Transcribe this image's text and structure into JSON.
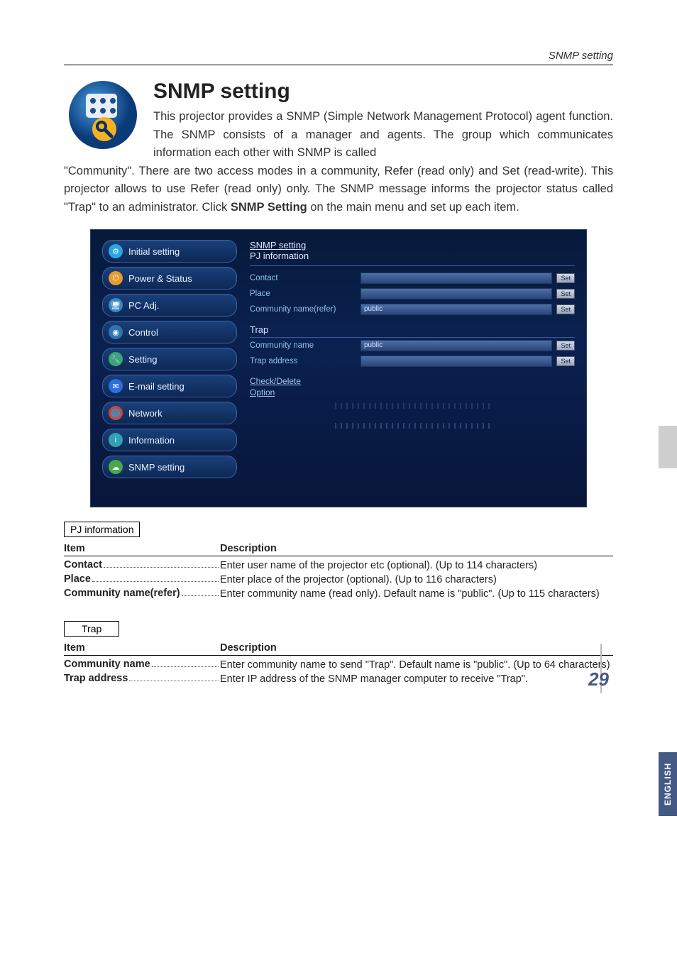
{
  "header": {
    "running_title": "SNMP setting"
  },
  "title": "SNMP setting",
  "intro_part1": "This projector provides a SNMP (Simple Network Management Protocol) agent function. The SNMP consists of a manager and agents. The group which communicates information each other with SNMP is called",
  "intro_part2a": "\"Community\". There are two access modes in a community, Refer (read only) and Set (read-write). This projector allows to use Refer (read only) only. The SNMP message informs the projector status called \"Trap\" to an administrator. Click ",
  "intro_bold": "SNMP Setting",
  "intro_part2b": " on the main menu and set up each item.",
  "screenshot": {
    "sidebar": [
      {
        "label": "Initial setting",
        "icon_bg": "#2aa7e0",
        "glyph": "⚙"
      },
      {
        "label": "Power & Status",
        "icon_bg": "#e59b2e",
        "glyph": "⏻"
      },
      {
        "label": "PC Adj.",
        "icon_bg": "#3a86c9",
        "glyph": "🖥"
      },
      {
        "label": "Control",
        "icon_bg": "#2e74b5",
        "glyph": "◉"
      },
      {
        "label": "Setting",
        "icon_bg": "#3aa673",
        "glyph": "🔧"
      },
      {
        "label": "E-mail setting",
        "icon_bg": "#2b6fe0",
        "glyph": "✉"
      },
      {
        "label": "Network",
        "icon_bg": "#c9483a",
        "glyph": "🌐"
      },
      {
        "label": "Information",
        "icon_bg": "#34a0b8",
        "glyph": "i"
      },
      {
        "label": "SNMP setting",
        "icon_bg": "#4aa84a",
        "glyph": "☁"
      }
    ],
    "section1_title_line1": "SNMP setting",
    "section1_title_line2": "PJ information",
    "section1_rows": [
      {
        "label": "Contact",
        "value": "",
        "btn": "Set"
      },
      {
        "label": "Place",
        "value": "",
        "btn": "Set"
      },
      {
        "label": "Community name(refer)",
        "value": "public",
        "btn": "Set"
      }
    ],
    "section2_title": "Trap",
    "section2_rows": [
      {
        "label": "Community name",
        "value": "public",
        "btn": "Set"
      },
      {
        "label": "Trap address",
        "value": "",
        "btn": "Set"
      }
    ],
    "links": [
      "Check/Delete",
      "Option"
    ]
  },
  "pj_info": {
    "box": "PJ information",
    "head_item": "Item",
    "head_desc": "Description",
    "rows": [
      {
        "item": "Contact",
        "desc": "Enter user name of the projector etc (optional). (Up to 114 characters)"
      },
      {
        "item": "Place",
        "desc": "Enter place of the projector (optional). (Up to 116 characters)"
      },
      {
        "item": "Community name(refer)",
        "desc": "Enter community name (read only). Default name is \"public\". (Up to 115 characters)"
      }
    ]
  },
  "trap": {
    "box": "Trap",
    "head_item": "Item",
    "head_desc": "Description",
    "rows": [
      {
        "item": "Community name",
        "desc": "Enter community name to send \"Trap\". Default name is \"public\". (Up to 64 characters)"
      },
      {
        "item": "Trap address",
        "desc": "Enter IP address of the SNMP manager computer to receive \"Trap\"."
      }
    ]
  },
  "side_tab": "ENGLISH",
  "page_number": "29"
}
